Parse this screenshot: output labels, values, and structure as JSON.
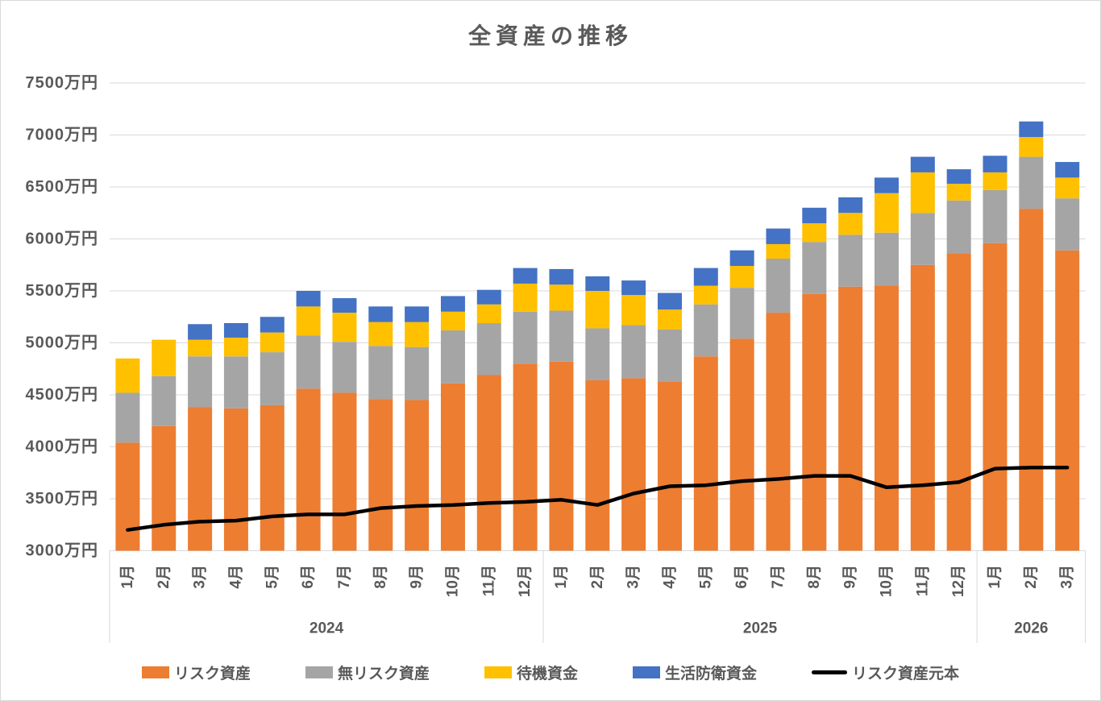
{
  "chart_data": {
    "type": "bar",
    "subtype": "stacked-bar-with-line",
    "title": "全資産の推移",
    "y_axis": {
      "min": 3000,
      "max": 7500,
      "step": 500,
      "unit": "万円",
      "labels": [
        "7500万円",
        "7000万円",
        "6500万円",
        "6000万円",
        "5500万円",
        "5000万円",
        "4500万円",
        "4000万円",
        "3500万円",
        "3000万円"
      ]
    },
    "categories": {
      "years": [
        {
          "label": "2024",
          "months": [
            "1月",
            "2月",
            "3月",
            "4月",
            "5月",
            "6月",
            "7月",
            "8月",
            "9月",
            "10月",
            "11月",
            "12月"
          ]
        },
        {
          "label": "2025",
          "months": [
            "1月",
            "2月",
            "3月",
            "4月",
            "5月",
            "6月",
            "7月",
            "8月",
            "9月",
            "10月",
            "11月",
            "12月"
          ]
        },
        {
          "label": "2026",
          "months": [
            "1月",
            "2月",
            "3月"
          ]
        }
      ]
    },
    "series": [
      {
        "key": "risk-assets",
        "name": "リスク資産",
        "color": "#ED7D31",
        "values": [
          4040,
          4200,
          4380,
          4370,
          4400,
          4560,
          4520,
          4460,
          4450,
          4610,
          4690,
          4800,
          4820,
          4640,
          4660,
          4630,
          4870,
          5040,
          5290,
          5470,
          5540,
          5550,
          5750,
          5860,
          5960,
          6290,
          5890
        ]
      },
      {
        "key": "risk-free-assets",
        "name": "無リスク資産",
        "color": "#A5A5A5",
        "values": [
          480,
          480,
          490,
          500,
          510,
          510,
          490,
          510,
          510,
          510,
          500,
          500,
          490,
          500,
          510,
          500,
          500,
          490,
          520,
          500,
          500,
          510,
          500,
          510,
          510,
          500,
          500
        ]
      },
      {
        "key": "standby-funds",
        "name": "待機資金",
        "color": "#FFC000",
        "values": [
          330,
          350,
          160,
          180,
          190,
          280,
          280,
          230,
          240,
          180,
          180,
          270,
          250,
          360,
          290,
          190,
          180,
          210,
          140,
          180,
          210,
          380,
          390,
          160,
          170,
          190,
          200
        ]
      },
      {
        "key": "emergency-funds",
        "name": "生活防衛資金",
        "color": "#4472C4",
        "values": [
          0,
          0,
          150,
          140,
          150,
          150,
          140,
          150,
          150,
          150,
          140,
          150,
          150,
          140,
          140,
          160,
          170,
          150,
          150,
          150,
          150,
          150,
          150,
          140,
          160,
          150,
          150
        ]
      }
    ],
    "line_series": {
      "key": "risk-asset-principal",
      "name": "リスク資産元本",
      "color": "#000000",
      "values": [
        3200,
        3250,
        3280,
        3290,
        3330,
        3350,
        3350,
        3410,
        3430,
        3440,
        3460,
        3470,
        3490,
        3440,
        3550,
        3620,
        3630,
        3670,
        3690,
        3720,
        3720,
        3610,
        3630,
        3660,
        3790,
        3800,
        3800
      ]
    },
    "legend_position": "bottom",
    "gridlines": true,
    "colors": {
      "background": "#FFFFFF",
      "gridline": "#D9D9D9",
      "text": "#595959"
    }
  }
}
